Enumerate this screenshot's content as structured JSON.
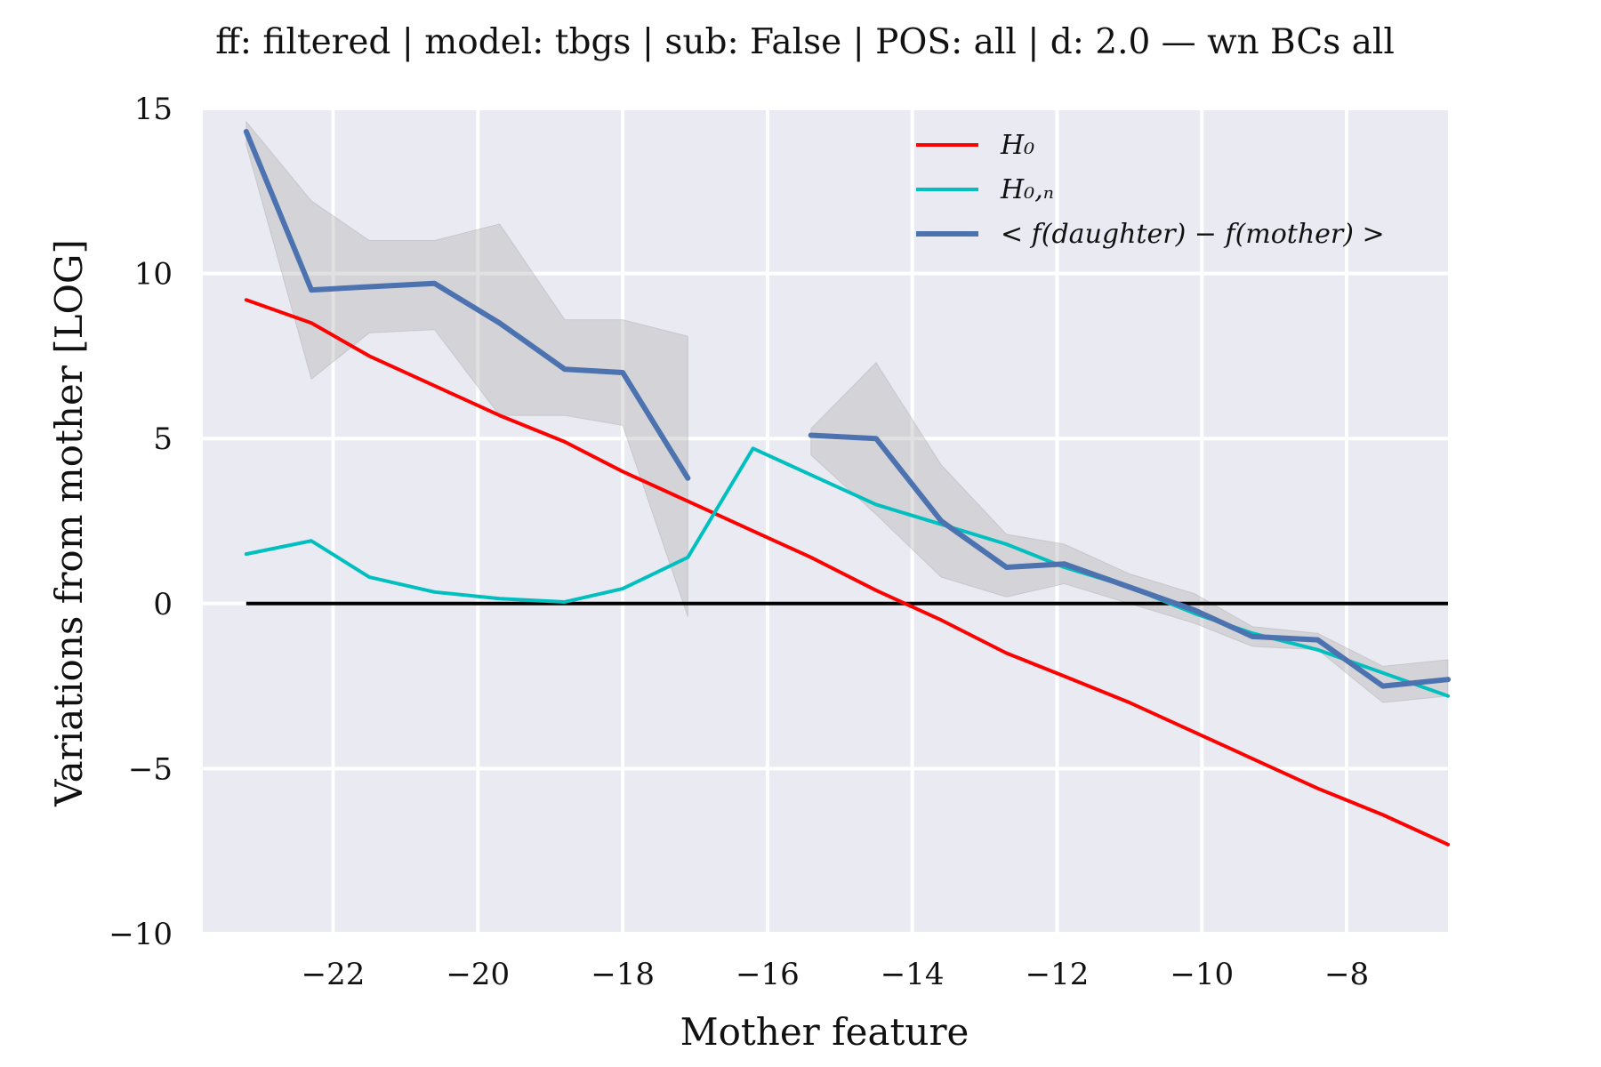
{
  "chart_data": {
    "type": "line",
    "title": "ff: filtered | model: tbgs | sub: False | POS: all | d: 2.0 — wn BCs all",
    "xlabel": "Mother feature",
    "ylabel": "Variations from mother [LOG]",
    "xlim": [
      -23.8,
      -6.6
    ],
    "ylim": [
      -10,
      15
    ],
    "xticks": [
      -22,
      -20,
      -18,
      -16,
      -14,
      -12,
      -10,
      -8
    ],
    "xtick_labels": [
      "−22",
      "−20",
      "−18",
      "−16",
      "−14",
      "−12",
      "−10",
      "−8"
    ],
    "yticks": [
      15,
      10,
      5,
      0,
      -5,
      -10
    ],
    "ytick_labels": [
      "15",
      "10",
      "5",
      "0",
      "−5",
      "−10"
    ],
    "grid": true,
    "legend_position": "top-right",
    "series": [
      {
        "name": "H₀",
        "color": "#ff0000",
        "x": [
          -23.2,
          -22.3,
          -21.5,
          -20.6,
          -19.7,
          -18.8,
          -18.0,
          -17.1,
          -16.2,
          -15.4,
          -14.5,
          -13.6,
          -12.7,
          -11.9,
          -11.0,
          -10.1,
          -9.3,
          -8.4,
          -7.5,
          -6.6
        ],
        "y": [
          9.2,
          8.5,
          7.5,
          6.6,
          5.7,
          4.9,
          4.0,
          3.1,
          2.2,
          1.4,
          0.4,
          -0.5,
          -1.5,
          -2.2,
          -3.0,
          -3.9,
          -4.7,
          -5.6,
          -6.4,
          -7.3
        ]
      },
      {
        "name": "H₀,ₙ",
        "color": "#00bfbf",
        "x": [
          -23.2,
          -22.3,
          -21.5,
          -20.6,
          -19.7,
          -18.8,
          -18.0,
          -17.1,
          -16.2,
          -15.4,
          -14.5,
          -13.6,
          -12.7,
          -11.9,
          -11.0,
          -10.1,
          -9.3,
          -8.4,
          -7.5,
          -6.6
        ],
        "y": [
          1.5,
          1.9,
          0.8,
          0.35,
          0.15,
          0.05,
          0.45,
          1.4,
          4.7,
          3.9,
          3.0,
          2.4,
          1.8,
          1.1,
          0.5,
          -0.3,
          -0.9,
          -1.4,
          -2.1,
          -2.8
        ]
      },
      {
        "name": "< f(daughter) − f(mother) >",
        "color": "#4c72b0",
        "x": [
          -23.2,
          -22.3,
          -21.5,
          -20.6,
          -19.7,
          -18.8,
          -18.0,
          -17.1,
          -15.4,
          -14.5,
          -13.6,
          -12.7,
          -11.9,
          -11.0,
          -10.1,
          -9.3,
          -8.4,
          -7.5,
          -6.6
        ],
        "y": [
          14.3,
          9.5,
          9.6,
          9.7,
          8.5,
          7.1,
          7.0,
          3.8,
          5.1,
          5.0,
          2.5,
          1.1,
          1.2,
          0.5,
          -0.2,
          -1.0,
          -1.1,
          -2.5,
          -2.3
        ],
        "lower": [
          13.9,
          6.8,
          8.2,
          8.3,
          5.7,
          5.7,
          5.4,
          -0.4,
          4.5,
          2.7,
          0.8,
          0.2,
          0.6,
          0.0,
          -0.6,
          -1.3,
          -1.4,
          -3.0,
          -2.8
        ],
        "upper": [
          14.6,
          12.2,
          11.0,
          11.0,
          11.5,
          8.6,
          8.6,
          8.1,
          5.3,
          7.3,
          4.2,
          2.1,
          1.8,
          0.9,
          0.3,
          -0.7,
          -0.9,
          -1.9,
          -1.7
        ]
      }
    ],
    "reference_line": {
      "y": 0,
      "x_range": [
        -23.2,
        -6.6
      ],
      "color": "#000000"
    },
    "background_color": "#eaeaf2",
    "grid_color": "#ffffff",
    "band_color": "#a9a9a9"
  }
}
